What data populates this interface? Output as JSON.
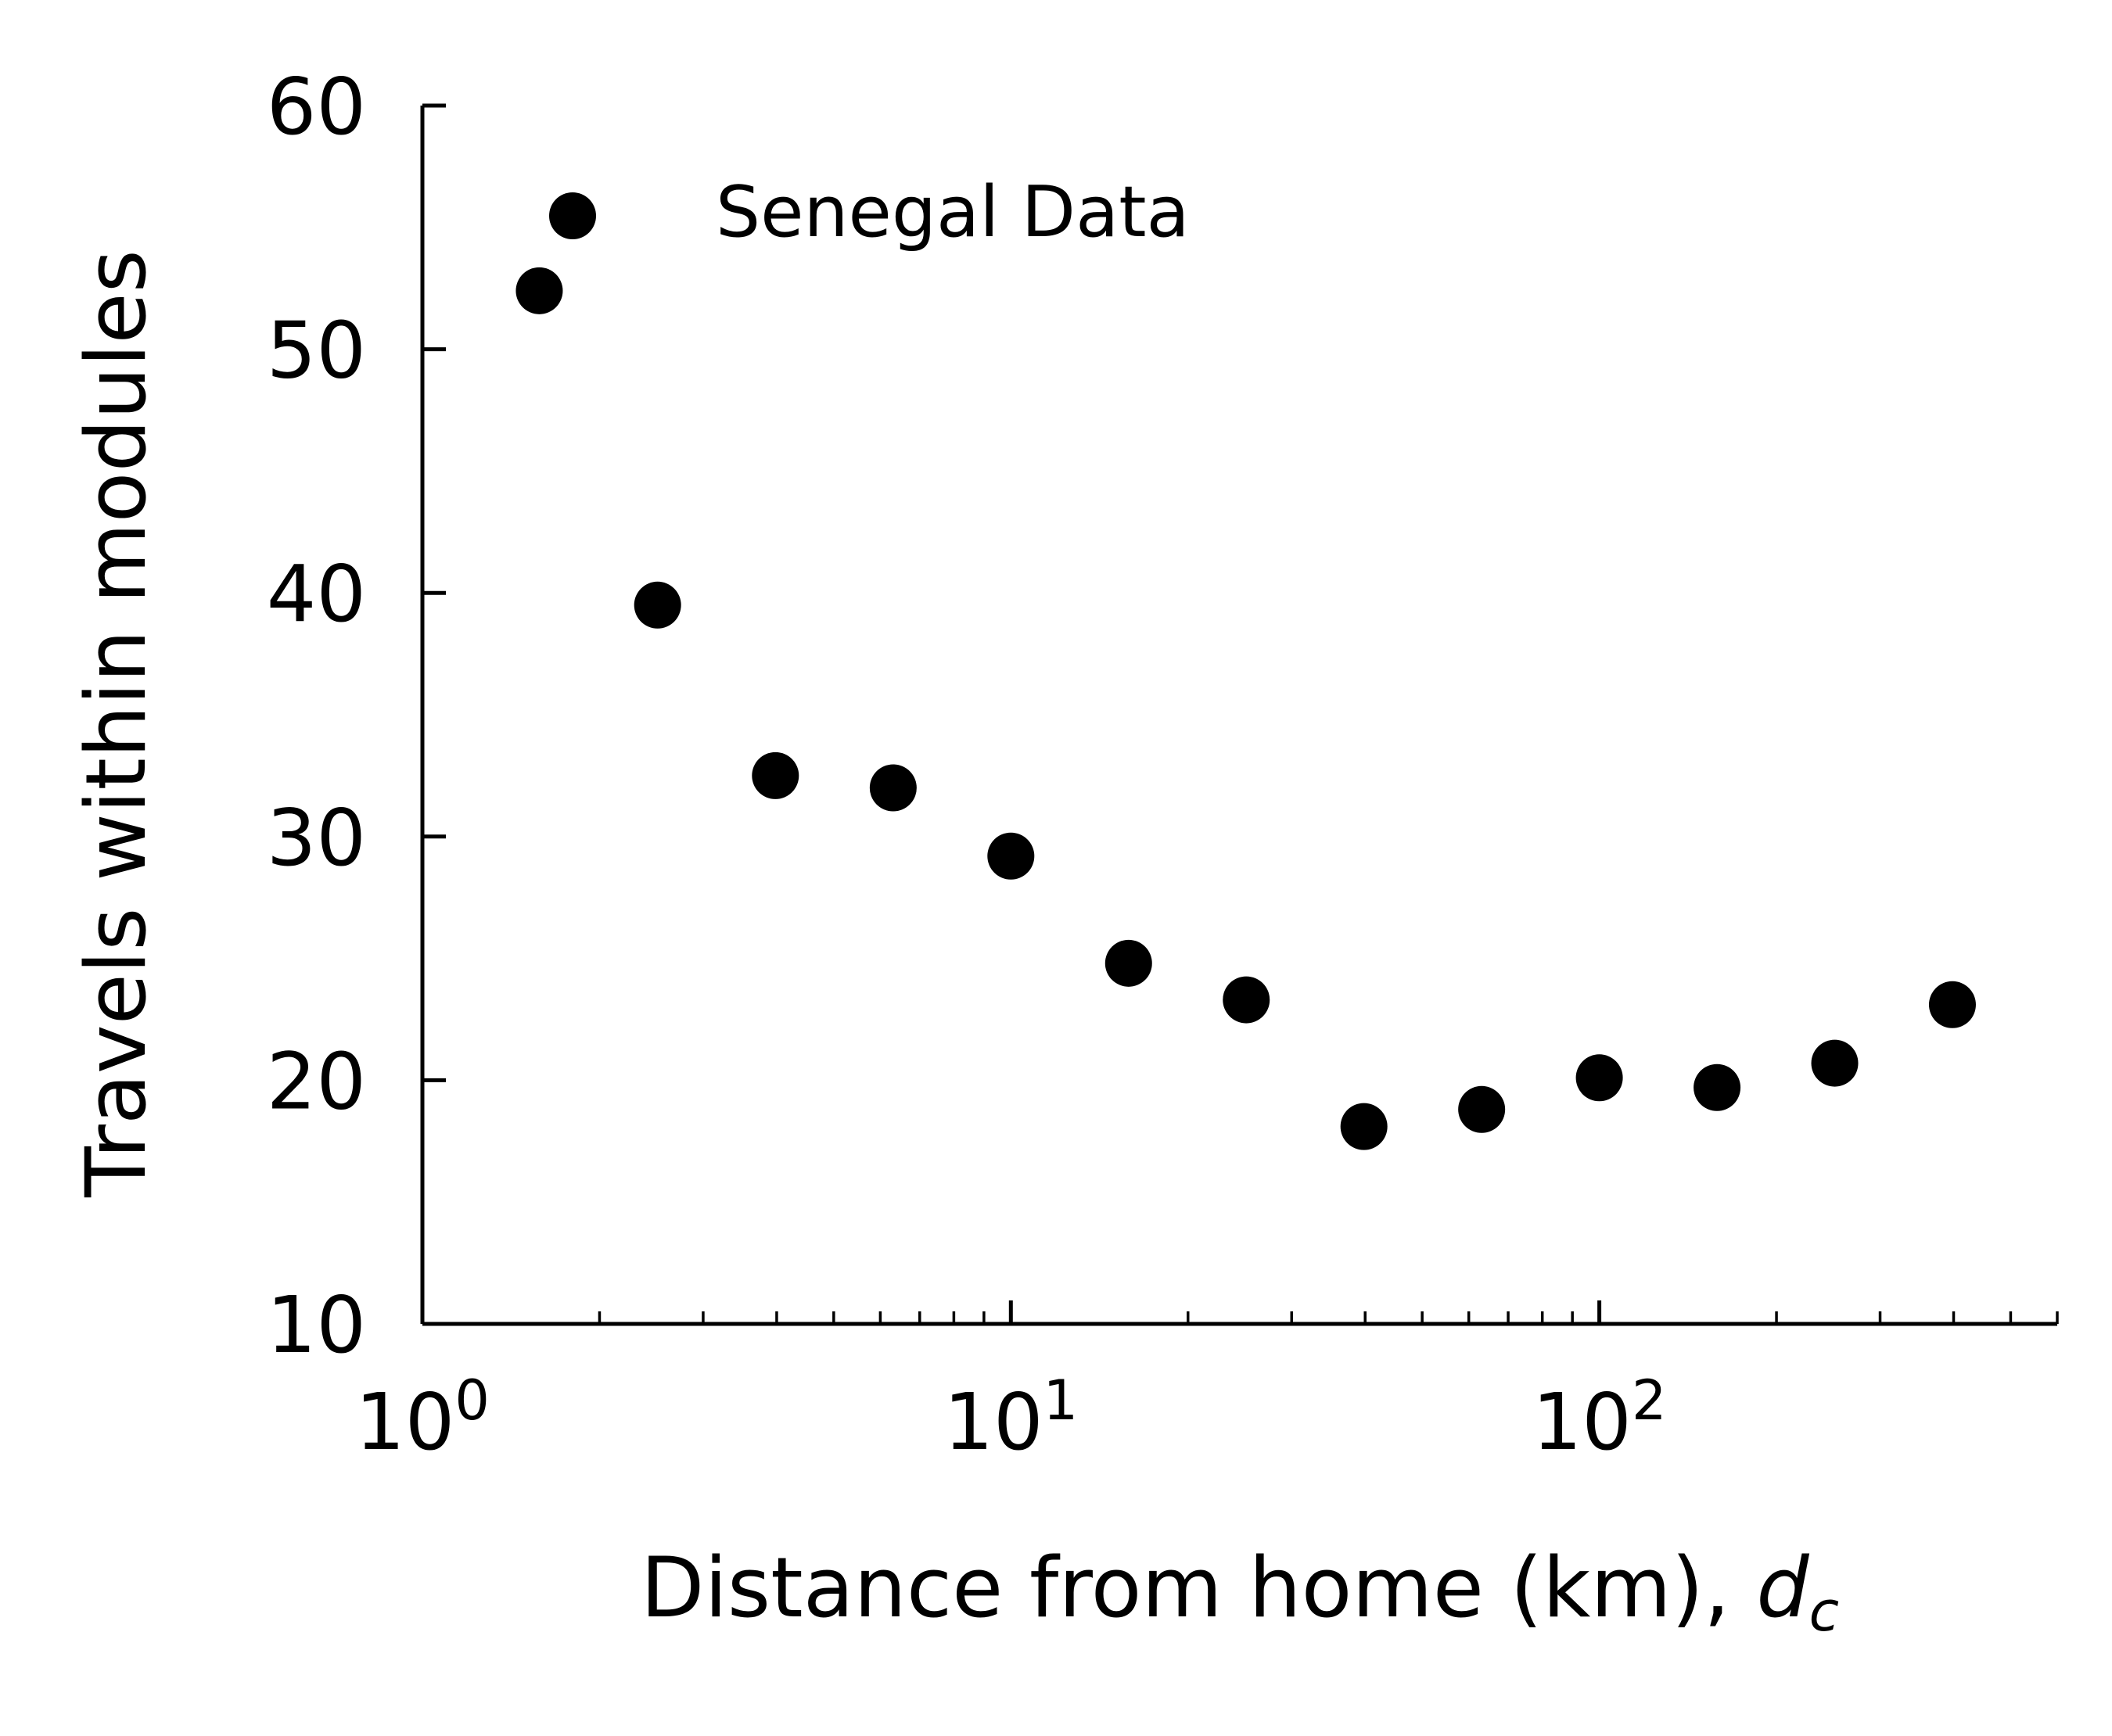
{
  "chart_data": {
    "type": "scatter",
    "x_scale": "log",
    "y_scale": "linear",
    "xlim": [
      1,
      600
    ],
    "ylim": [
      10,
      60
    ],
    "xticks": [
      {
        "value": 1,
        "base": "10",
        "exp": "0"
      },
      {
        "value": 10,
        "base": "10",
        "exp": "1"
      },
      {
        "value": 100,
        "base": "10",
        "exp": "2"
      }
    ],
    "yticks": [
      {
        "value": 10,
        "label": "10"
      },
      {
        "value": 20,
        "label": "20"
      },
      {
        "value": 30,
        "label": "30"
      },
      {
        "value": 40,
        "label": "40"
      },
      {
        "value": 50,
        "label": "50"
      },
      {
        "value": 60,
        "label": "60"
      }
    ],
    "xlabel": {
      "main": "Distance from home (km), ",
      "var": "d",
      "sub": "c"
    },
    "ylabel": "Travels within modules",
    "legend": {
      "position": "top-left",
      "entries": [
        "Senegal Data"
      ]
    },
    "grid": false,
    "marker_color": "#000000",
    "series": [
      {
        "name": "Senegal Data",
        "x": [
          1.58,
          2.51,
          3.98,
          6.31,
          10.0,
          15.85,
          25.12,
          39.81,
          63.1,
          100.0,
          158.5,
          251.2,
          398.1
        ],
        "y": [
          52.4,
          39.5,
          32.5,
          32.0,
          29.2,
          24.8,
          23.3,
          18.1,
          18.8,
          20.1,
          19.7,
          20.7,
          23.1
        ]
      }
    ]
  }
}
